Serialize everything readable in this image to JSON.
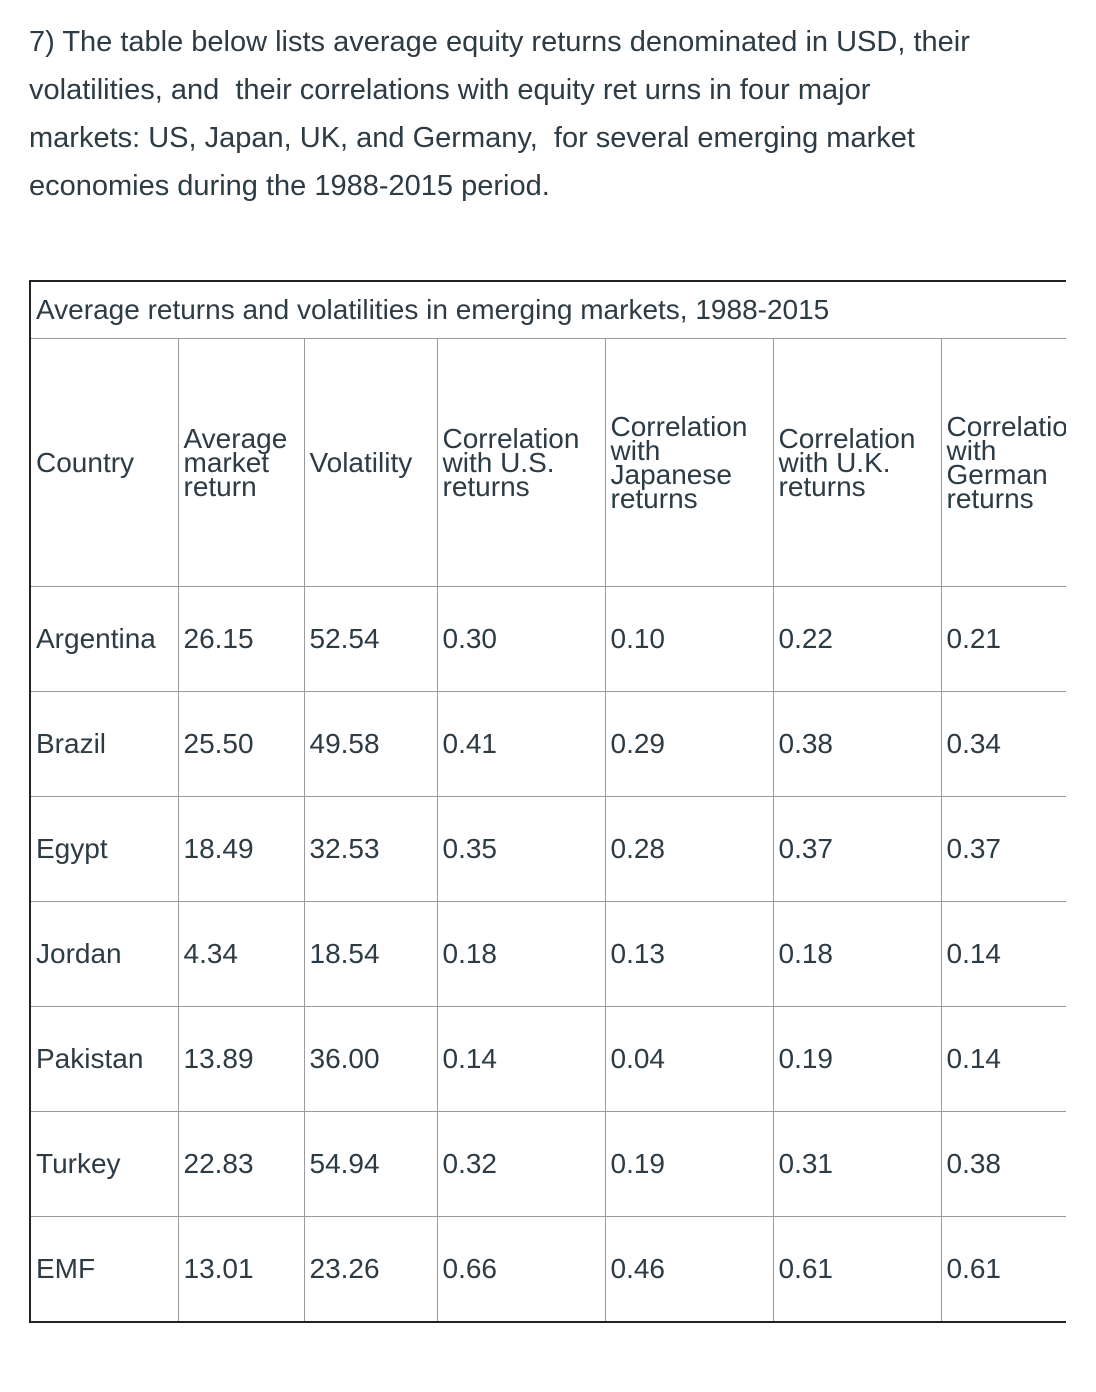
{
  "question_lines": [
    "7) The table below lists average equity returns denominated in USD, their",
    "volatilities, and  their correlations with equity ret urns in four major",
    "markets: US, Japan, UK, and Germany,  for several emerging market",
    "economies during the 1988-2015 period."
  ],
  "table": {
    "caption": "Average returns and volatilities in emerging markets, 1988-2015",
    "header": [
      "Country",
      "Average market return",
      "Volatility",
      "Correlation with U.S. returns",
      "Correlation with Japanese returns",
      "Correlation with U.K. returns",
      "Correlation with German returns"
    ],
    "rows": [
      [
        "Argentina",
        "26.15",
        "52.54",
        "0.30",
        "0.10",
        "0.22",
        "0.21"
      ],
      [
        "Brazil",
        "25.50",
        "49.58",
        "0.41",
        "0.29",
        "0.38",
        "0.34"
      ],
      [
        "Egypt",
        "18.49",
        "32.53",
        "0.35",
        "0.28",
        "0.37",
        "0.37"
      ],
      [
        "Jordan",
        "4.34",
        "18.54",
        "0.18",
        "0.13",
        "0.18",
        "0.14"
      ],
      [
        "Pakistan",
        "13.89",
        "36.00",
        "0.14",
        "0.04",
        "0.19",
        "0.14"
      ],
      [
        "Turkey",
        "22.83",
        "54.94",
        "0.32",
        "0.19",
        "0.31",
        "0.38"
      ],
      [
        "EMF",
        "13.01",
        "23.26",
        "0.66",
        "0.46",
        "0.61",
        "0.61"
      ]
    ]
  }
}
